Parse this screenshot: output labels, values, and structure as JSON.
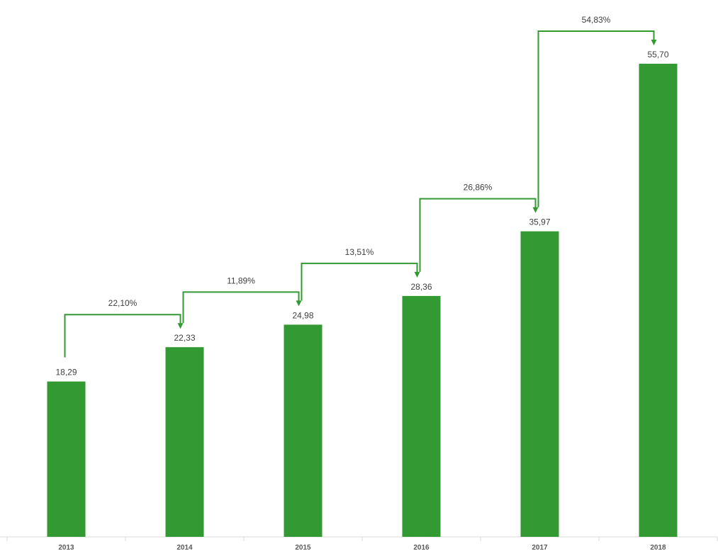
{
  "chart_data": {
    "type": "bar",
    "title": "",
    "xlabel": "",
    "ylabel": "",
    "categories": [
      "2013",
      "2014",
      "2015",
      "2016",
      "2017",
      "2018"
    ],
    "values": [
      18.29,
      22.33,
      24.98,
      28.36,
      35.97,
      55.7
    ],
    "value_labels": [
      "18,29",
      "22,33",
      "24,98",
      "28,36",
      "35,97",
      "55,70"
    ],
    "ylim": [
      0,
      60
    ],
    "grid": false,
    "legend": "none",
    "bar_color": "#339933",
    "arrow_color": "#339933",
    "growth_annotations": [
      {
        "from": "2013",
        "to": "2014",
        "label": "22,10%"
      },
      {
        "from": "2014",
        "to": "2015",
        "label": "11,89%"
      },
      {
        "from": "2015",
        "to": "2016",
        "label": "13,51%"
      },
      {
        "from": "2016",
        "to": "2017",
        "label": "26,86%"
      },
      {
        "from": "2017",
        "to": "2018",
        "label": "54,83%"
      }
    ]
  }
}
